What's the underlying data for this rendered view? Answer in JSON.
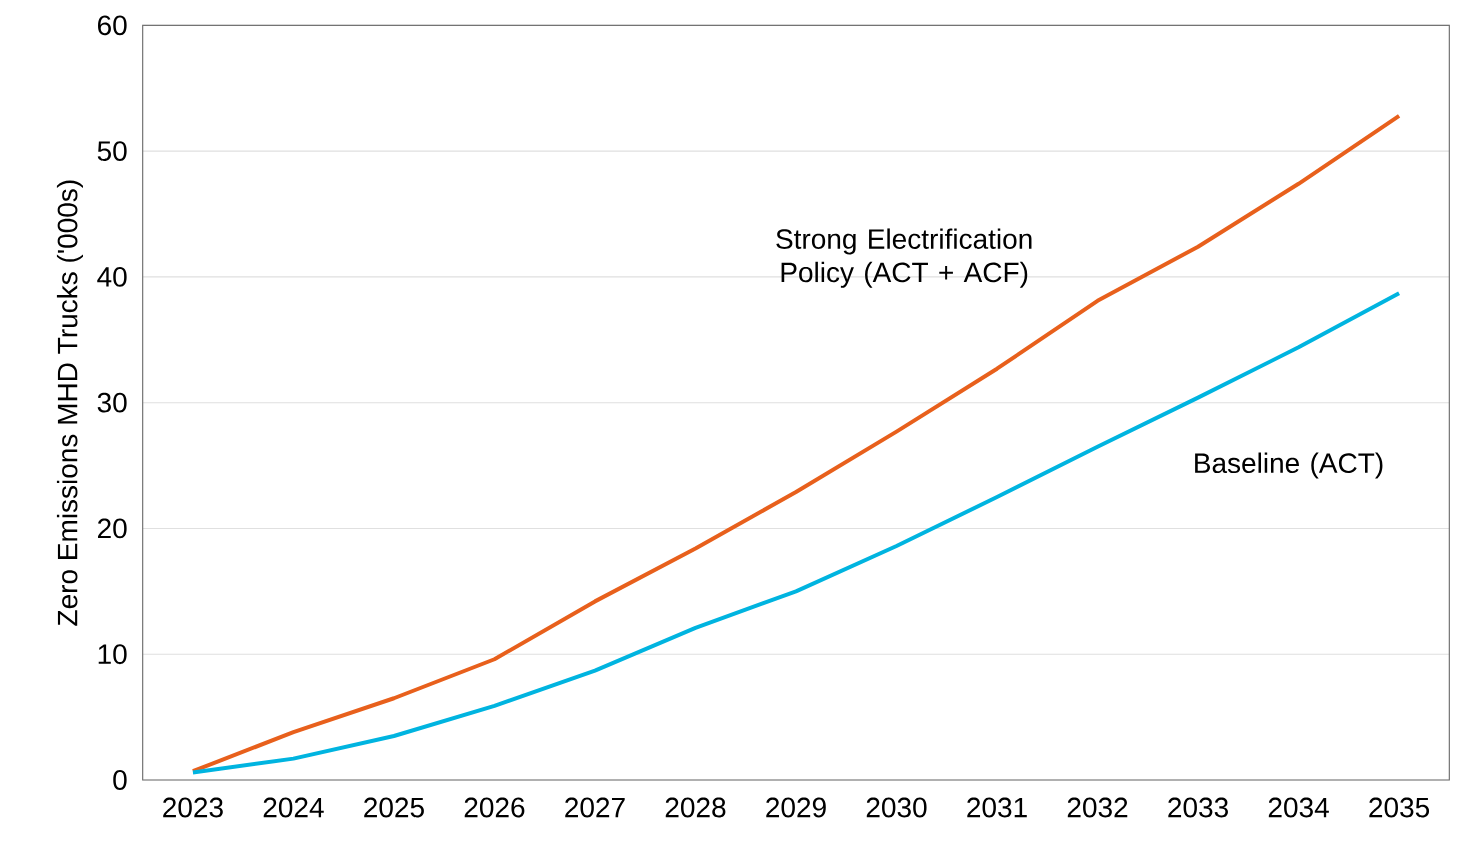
{
  "chart_data": {
    "type": "line",
    "ylabel": "Zero Emissions MHD Trucks  ('000s)",
    "categories": [
      "2023",
      "2024",
      "2025",
      "2026",
      "2027",
      "2028",
      "2029",
      "2030",
      "2031",
      "2032",
      "2033",
      "2034",
      "2035"
    ],
    "series": [
      {
        "name": "Strong Electrification Policy (ACT + ACF)",
        "color": "#e8601c",
        "values": [
          0.7,
          3.8,
          6.5,
          9.6,
          14.2,
          18.4,
          22.9,
          27.7,
          32.7,
          38.1,
          42.4,
          47.4,
          52.8
        ]
      },
      {
        "name": "Baseline (ACT)",
        "color": "#00b4e0",
        "values": [
          0.6,
          1.7,
          3.5,
          5.9,
          8.7,
          12.1,
          15.0,
          18.6,
          22.5,
          26.5,
          30.4,
          34.4,
          38.7
        ]
      }
    ],
    "ylim": [
      0,
      60
    ],
    "yticks": [
      0,
      10,
      20,
      30,
      40,
      50,
      60
    ],
    "grid": "y"
  }
}
